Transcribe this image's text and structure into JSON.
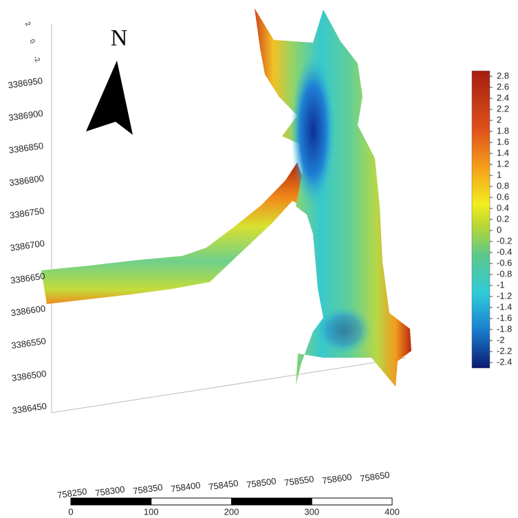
{
  "north_label": "N",
  "z_axis": {
    "lim": [
      -2,
      2
    ],
    "ticks": [
      2,
      0,
      -2
    ]
  },
  "y_axis": {
    "lim": [
      3386450,
      3386950
    ],
    "ticks": [
      3386950,
      3386900,
      3386850,
      3386800,
      3386750,
      3386700,
      3386650,
      3386600,
      3386550,
      3386500,
      3386450
    ]
  },
  "x_axis": {
    "lim": [
      758250,
      758650
    ],
    "ticks": [
      758250,
      758300,
      758350,
      758400,
      758450,
      758500,
      758550,
      758600,
      758650
    ]
  },
  "colorbar": {
    "lim": [
      -2.5,
      2.9
    ],
    "ticks": [
      2.8,
      2.6,
      2.4,
      2.2,
      2,
      1.8,
      1.6,
      1.4,
      1.2,
      1,
      0.8,
      0.6,
      0.4,
      0.2,
      0,
      -0.2,
      -0.4,
      -0.6,
      -0.8,
      -1,
      -1.2,
      -1.4,
      -1.6,
      -1.8,
      -2,
      -2.2,
      -2.4
    ]
  },
  "scale_bar": {
    "lim": [
      0,
      400
    ],
    "ticks": [
      0,
      100,
      200,
      300,
      400
    ]
  }
}
